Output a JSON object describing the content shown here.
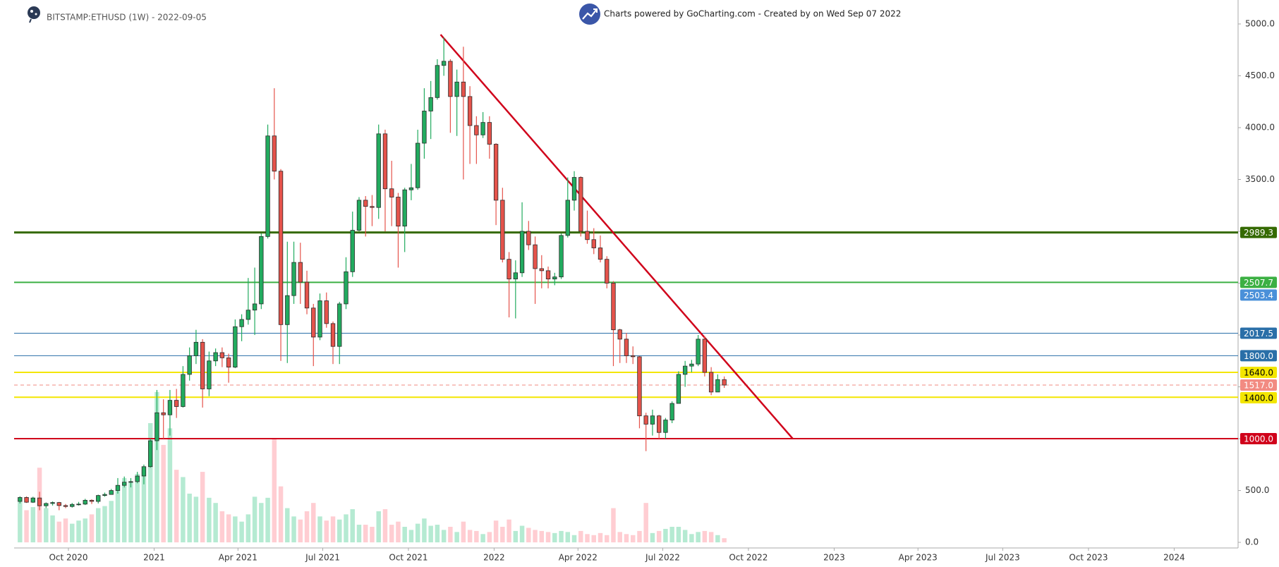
{
  "chart_data": {
    "type": "candlestick",
    "title": "BITSTAMP:ETHUSD (1W) - 2022-09-05",
    "subtitle": "Charts powered by GoCharting.com - Created by  on Wed Sep 07 2022",
    "xlim": [
      -0.9,
      186.8
    ],
    "xticks": [
      {
        "value": 7.43,
        "label": "Oct 2020"
      },
      {
        "value": 20.57,
        "label": "2021"
      },
      {
        "value": 33.43,
        "label": "Apr 2021"
      },
      {
        "value": 46.43,
        "label": "Jul 2021"
      },
      {
        "value": 59.57,
        "label": "Oct 2021"
      },
      {
        "value": 72.71,
        "label": "2022"
      },
      {
        "value": 85.57,
        "label": "Apr 2022"
      },
      {
        "value": 98.57,
        "label": "Jul 2022"
      },
      {
        "value": 111.71,
        "label": "Oct 2022"
      },
      {
        "value": 124.86,
        "label": "2023"
      },
      {
        "value": 137.71,
        "label": "Apr 2023"
      },
      {
        "value": 150.71,
        "label": "Jul 2023"
      },
      {
        "value": 163.86,
        "label": "Oct 2023"
      },
      {
        "value": 177,
        "label": "2024"
      }
    ],
    "ylim": [
      -54,
      5231
    ],
    "yticks": [
      {
        "value": 0,
        "label": "0.0"
      },
      {
        "value": 500,
        "label": "500.0"
      },
      {
        "value": 1000,
        "label": "1000.0"
      },
      {
        "value": 1500,
        "label": "1500.0"
      },
      {
        "value": 2000,
        "label": "2000.0"
      },
      {
        "value": 2500,
        "label": "2500.0"
      },
      {
        "value": 3000,
        "label": "3000.0"
      },
      {
        "value": 3500,
        "label": "3500.0"
      },
      {
        "value": 4000,
        "label": "4000.0"
      },
      {
        "value": 4500,
        "label": "4500.0"
      },
      {
        "value": 5000,
        "label": "5000.0"
      }
    ],
    "open": [
      395,
      433,
      387,
      428,
      353,
      375,
      384,
      355,
      346,
      366,
      369,
      406,
      395,
      452,
      462,
      500,
      550,
      580,
      586,
      640,
      730,
      980,
      1250,
      1230,
      1370,
      1310,
      1620,
      1800,
      1930,
      1480,
      1750,
      1830,
      1780,
      1690,
      2080,
      2150,
      2240,
      2300,
      2950,
      3920,
      3580,
      2100,
      2380,
      2700,
      2510,
      2260,
      1980,
      2330,
      2110,
      1890,
      2300,
      2610,
      3010,
      3300,
      3240,
      3230,
      3940,
      3410,
      3330,
      3050,
      3400,
      3420,
      3850,
      4160,
      4290,
      4600,
      4640,
      4300,
      4440,
      4300,
      4020,
      3930,
      4050,
      3840,
      3300,
      2730,
      2540,
      2600,
      3000,
      2870,
      2640,
      2620,
      2540,
      2560,
      2960,
      3300,
      3520,
      3000,
      2920,
      2840,
      2730,
      2500,
      2050,
      1960,
      1800,
      1790,
      1220,
      1140,
      1220,
      1060,
      1180,
      1340,
      1620,
      1700,
      1720,
      1960,
      1640,
      1450,
      1570
    ],
    "high": [
      445,
      444,
      440,
      488,
      385,
      395,
      390,
      370,
      380,
      390,
      420,
      415,
      460,
      480,
      515,
      620,
      635,
      620,
      680,
      750,
      1000,
      1470,
      1380,
      1470,
      1480,
      1700,
      1880,
      2050,
      1960,
      1840,
      1870,
      1880,
      1820,
      2150,
      2200,
      2550,
      2650,
      2980,
      4030,
      4380,
      3600,
      2900,
      2900,
      2890,
      2620,
      2300,
      2400,
      2410,
      2130,
      2320,
      2750,
      3190,
      3330,
      3340,
      3350,
      4030,
      3980,
      3680,
      3370,
      3420,
      3650,
      3980,
      4380,
      4450,
      4660,
      4870,
      4660,
      4560,
      4780,
      4400,
      4110,
      4150,
      4110,
      3850,
      3420,
      2800,
      2720,
      3280,
      3100,
      2950,
      2770,
      2660,
      2600,
      2980,
      3520,
      3580,
      3530,
      3200,
      3030,
      2960,
      2760,
      2520,
      2060,
      2020,
      1890,
      1800,
      1250,
      1280,
      1230,
      1200,
      1360,
      1650,
      1750,
      1760,
      2000,
      1990,
      1690,
      1620,
      1600
    ],
    "low": [
      375,
      380,
      380,
      310,
      330,
      355,
      310,
      330,
      335,
      355,
      360,
      370,
      375,
      440,
      460,
      470,
      530,
      530,
      570,
      560,
      720,
      890,
      1000,
      1030,
      1200,
      1300,
      1560,
      1720,
      1300,
      1410,
      1700,
      1690,
      1540,
      1680,
      1940,
      2100,
      2000,
      2250,
      2930,
      3500,
      1750,
      1730,
      2300,
      2300,
      2200,
      1700,
      1950,
      2070,
      1720,
      1720,
      2250,
      2560,
      3000,
      2950,
      3050,
      3120,
      3000,
      3050,
      2650,
      2800,
      3300,
      3400,
      3700,
      3890,
      4270,
      4500,
      3950,
      3920,
      3500,
      3650,
      3650,
      3900,
      3700,
      3060,
      2700,
      2170,
      2160,
      2560,
      2820,
      2300,
      2450,
      2450,
      2480,
      2540,
      2940,
      3200,
      2950,
      2880,
      2780,
      2700,
      2450,
      1700,
      1730,
      1730,
      1720,
      1100,
      880,
      1030,
      1000,
      1000,
      1150,
      1340,
      1500,
      1640,
      1700,
      1600,
      1420,
      1450,
      1490
    ],
    "close": [
      433,
      387,
      428,
      353,
      375,
      384,
      355,
      346,
      366,
      369,
      406,
      395,
      452,
      462,
      500,
      550,
      580,
      586,
      640,
      730,
      980,
      1250,
      1230,
      1370,
      1310,
      1620,
      1800,
      1930,
      1480,
      1750,
      1830,
      1780,
      1690,
      2080,
      2150,
      2240,
      2300,
      2950,
      3920,
      3580,
      2100,
      2380,
      2700,
      2510,
      2260,
      1980,
      2330,
      2110,
      1890,
      2300,
      2610,
      3010,
      3300,
      3240,
      3230,
      3940,
      3410,
      3330,
      3050,
      3400,
      3420,
      3850,
      4160,
      4290,
      4600,
      4640,
      4300,
      4440,
      4300,
      4020,
      3930,
      4050,
      3840,
      3300,
      2730,
      2540,
      2600,
      3000,
      2870,
      2640,
      2620,
      2540,
      2560,
      2960,
      3300,
      3520,
      3000,
      2920,
      2840,
      2730,
      2500,
      2050,
      1960,
      1800,
      1790,
      1220,
      1140,
      1220,
      1060,
      1180,
      1340,
      1620,
      1700,
      1720,
      1960,
      1640,
      1450,
      1570,
      1517
    ],
    "volume": [
      400,
      310,
      340,
      720,
      330,
      260,
      200,
      230,
      180,
      210,
      230,
      270,
      330,
      350,
      400,
      520,
      620,
      580,
      660,
      700,
      1150,
      1450,
      940,
      1100,
      700,
      630,
      470,
      440,
      680,
      430,
      380,
      300,
      270,
      250,
      200,
      270,
      440,
      380,
      430,
      1000,
      540,
      330,
      250,
      220,
      300,
      380,
      250,
      210,
      250,
      220,
      270,
      320,
      170,
      170,
      150,
      300,
      320,
      170,
      200,
      150,
      120,
      180,
      230,
      160,
      170,
      120,
      150,
      100,
      200,
      120,
      110,
      80,
      100,
      210,
      150,
      220,
      110,
      160,
      140,
      120,
      110,
      100,
      90,
      110,
      100,
      70,
      110,
      80,
      70,
      90,
      70,
      330,
      100,
      80,
      70,
      110,
      380,
      90,
      110,
      130,
      150,
      150,
      120,
      80,
      100,
      110,
      100,
      70,
      40
    ],
    "colors": {
      "up": "#22ab5f",
      "down": "#e5534b",
      "volume_up": "#b5ead2",
      "volume_down": "#ffcdd2"
    },
    "levels": [
      {
        "value": 2989.3,
        "color": "#356a00",
        "style": "thick"
      },
      {
        "value": 2507.7,
        "color": "#3cb043",
        "style": "medium"
      },
      {
        "value": 2503.4,
        "color": "#4a90d9",
        "style": "none"
      },
      {
        "value": 2017.5,
        "color": "#2a6fa8",
        "style": "thin"
      },
      {
        "value": 1800,
        "label": "1800.0",
        "color": "#2a6fa8",
        "style": "thin"
      },
      {
        "value": 1640,
        "label": "1640.0",
        "color": "#f3e600",
        "text_color": "#000000",
        "style": "medium"
      },
      {
        "value": 1517,
        "label": "1517.0",
        "color": "#f28b82",
        "style": "dashed"
      },
      {
        "value": 1400,
        "label": "1400.0",
        "color": "#f3e600",
        "text_color": "#000000",
        "style": "medium"
      },
      {
        "value": 1000,
        "label": "1000.0",
        "color": "#d0021b",
        "style": "medium"
      }
    ],
    "trendline": {
      "x": [
        64.5,
        118.5
      ],
      "y": [
        4897,
        1001
      ],
      "color": "#d0021b"
    }
  }
}
